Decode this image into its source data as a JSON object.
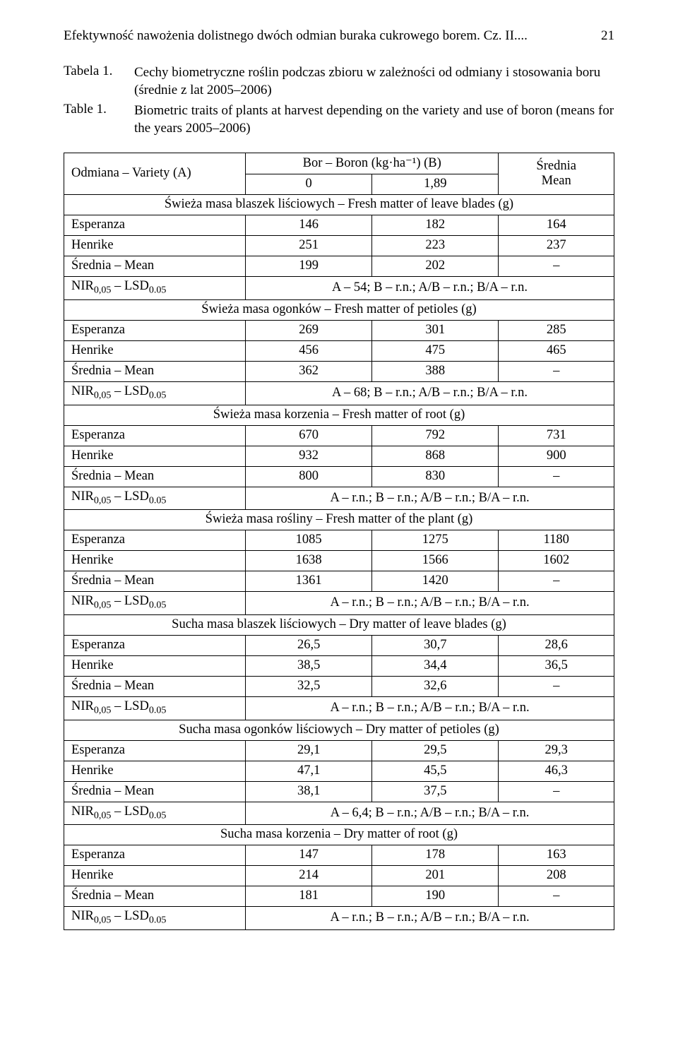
{
  "header": {
    "running_title": "Efektywność nawożenia dolistnego dwóch odmian buraka cukrowego borem. Cz. II....",
    "page_number": "21"
  },
  "caption": {
    "label_pl": "Tabela 1.",
    "text_pl": "Cechy biometryczne roślin podczas zbioru w zależności od odmiany i stosowania boru (średnie z lat 2005–2006)",
    "label_en": "Table 1.",
    "text_en": "Biometric traits of plants at harvest depending on the variety and use of boron (means for the years 2005–2006)"
  },
  "table": {
    "head": {
      "variety": "Odmiana – Variety (A)",
      "boron_header": "Bor – Boron (kg·ha⁻¹) (B)",
      "lvl0": "0",
      "lvl1": "1,89",
      "mean": "Średnia\nMean"
    },
    "sections": [
      {
        "title": "Świeża masa blaszek liściowych – Fresh matter of leave blades (g)",
        "rows": [
          {
            "label": "Esperanza",
            "v0": "146",
            "v1": "182",
            "mean": "164"
          },
          {
            "label": "Henrike",
            "v0": "251",
            "v1": "223",
            "mean": "237"
          },
          {
            "label": "Średnia – Mean",
            "v0": "199",
            "v1": "202",
            "mean": "–"
          }
        ],
        "nir": {
          "label": "NIR₀,₀₅ – LSD₀.₀₅",
          "value": "A – 54; B – r.n.; A/B – r.n.; B/A – r.n."
        }
      },
      {
        "title": "Świeża masa ogonków – Fresh matter of petioles (g)",
        "rows": [
          {
            "label": "Esperanza",
            "v0": "269",
            "v1": "301",
            "mean": "285"
          },
          {
            "label": "Henrike",
            "v0": "456",
            "v1": "475",
            "mean": "465"
          },
          {
            "label": "Średnia – Mean",
            "v0": "362",
            "v1": "388",
            "mean": "–"
          }
        ],
        "nir": {
          "label": "NIR₀,₀₅ – LSD₀.₀₅",
          "value": "A – 68; B – r.n.; A/B – r.n.; B/A – r.n."
        }
      },
      {
        "title": "Świeża masa korzenia – Fresh matter of root (g)",
        "rows": [
          {
            "label": "Esperanza",
            "v0": "670",
            "v1": "792",
            "mean": "731"
          },
          {
            "label": "Henrike",
            "v0": "932",
            "v1": "868",
            "mean": "900"
          },
          {
            "label": "Średnia – Mean",
            "v0": "800",
            "v1": "830",
            "mean": "–"
          }
        ],
        "nir": {
          "label": "NIR₀,₀₅ – LSD₀.₀₅",
          "value": "A – r.n.; B – r.n.; A/B – r.n.; B/A – r.n."
        }
      },
      {
        "title": "Świeża masa rośliny – Fresh matter of the plant  (g)",
        "rows": [
          {
            "label": "Esperanza",
            "v0": "1085",
            "v1": "1275",
            "mean": "1180"
          },
          {
            "label": "Henrike",
            "v0": "1638",
            "v1": "1566",
            "mean": "1602"
          },
          {
            "label": "Średnia – Mean",
            "v0": "1361",
            "v1": "1420",
            "mean": "–"
          }
        ],
        "nir": {
          "label": "NIR₀,₀₅ – LSD₀.₀₅",
          "value": "A – r.n.; B – r.n.; A/B – r.n.; B/A – r.n."
        }
      },
      {
        "title": "Sucha masa blaszek liściowych – Dry matter of leave blades (g)",
        "rows": [
          {
            "label": "Esperanza",
            "v0": "26,5",
            "v1": "30,7",
            "mean": "28,6"
          },
          {
            "label": "Henrike",
            "v0": "38,5",
            "v1": "34,4",
            "mean": "36,5"
          },
          {
            "label": "Średnia – Mean",
            "v0": "32,5",
            "v1": "32,6",
            "mean": "–"
          }
        ],
        "nir": {
          "label": "NIR₀,₀₅ – LSD₀.₀₅",
          "value": "A – r.n.; B – r.n.; A/B – r.n.; B/A – r.n."
        }
      },
      {
        "title": "Sucha masa ogonków liściowych – Dry matter of petioles (g)",
        "rows": [
          {
            "label": "Esperanza",
            "v0": "29,1",
            "v1": "29,5",
            "mean": "29,3"
          },
          {
            "label": "Henrike",
            "v0": "47,1",
            "v1": "45,5",
            "mean": "46,3"
          },
          {
            "label": "Średnia – Mean",
            "v0": "38,1",
            "v1": "37,5",
            "mean": "–"
          }
        ],
        "nir": {
          "label": "NIR₀,₀₅ – LSD₀.₀₅",
          "value": "A – 6,4; B – r.n.; A/B – r.n.; B/A – r.n."
        }
      },
      {
        "title": "Sucha masa korzenia – Dry matter  of root (g)",
        "rows": [
          {
            "label": "Esperanza",
            "v0": "147",
            "v1": "178",
            "mean": "163"
          },
          {
            "label": "Henrike",
            "v0": "214",
            "v1": "201",
            "mean": "208"
          },
          {
            "label": "Średnia – Mean",
            "v0": "181",
            "v1": "190",
            "mean": "–"
          }
        ],
        "nir": {
          "label": "NIR₀,₀₅ – LSD₀.₀₅",
          "value": "A – r.n.; B – r.n.; A/B – r.n.; B/A – r.n."
        }
      }
    ]
  }
}
